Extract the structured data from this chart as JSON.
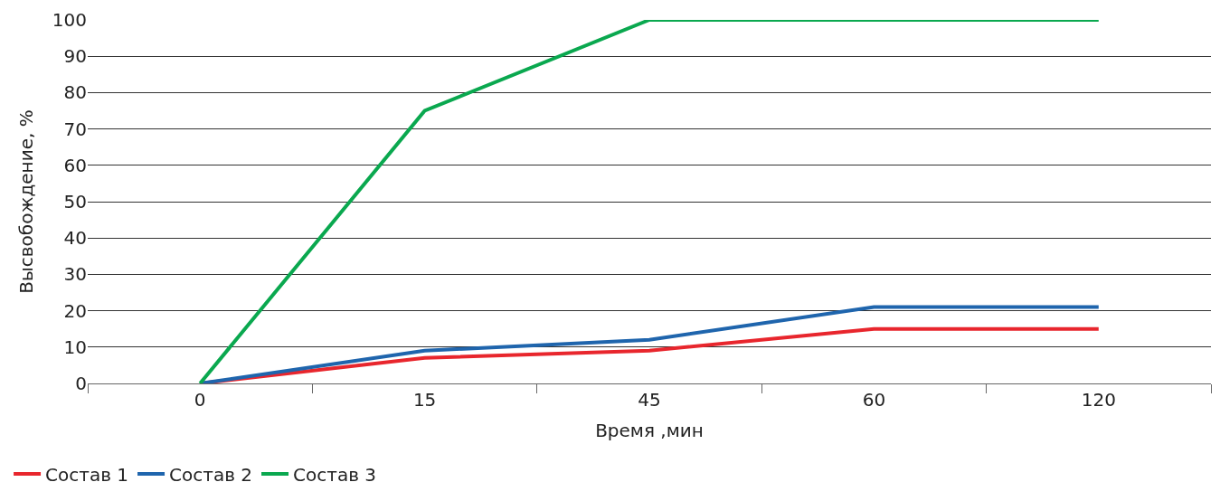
{
  "chart_data": {
    "type": "line",
    "xlabel": "Время ,мин",
    "ylabel": "Высвобождение, %",
    "categories": [
      "0",
      "15",
      "45",
      "60",
      "120"
    ],
    "series": [
      {
        "name": "Состав 1",
        "color": "#e8262d",
        "values": [
          0,
          7,
          9,
          15,
          15
        ]
      },
      {
        "name": "Состав 2",
        "color": "#1f65ad",
        "values": [
          0,
          9,
          12,
          21,
          21
        ]
      },
      {
        "name": "Состав 3",
        "color": "#0aa84f",
        "values": [
          0,
          75,
          100,
          100,
          100
        ]
      }
    ],
    "ylim": [
      0,
      100
    ],
    "yticks": [
      0,
      10,
      20,
      30,
      40,
      50,
      60,
      70,
      80,
      90,
      100
    ],
    "grid": "y",
    "legend": "bottom left",
    "marker": "none",
    "line_style": "solid"
  }
}
